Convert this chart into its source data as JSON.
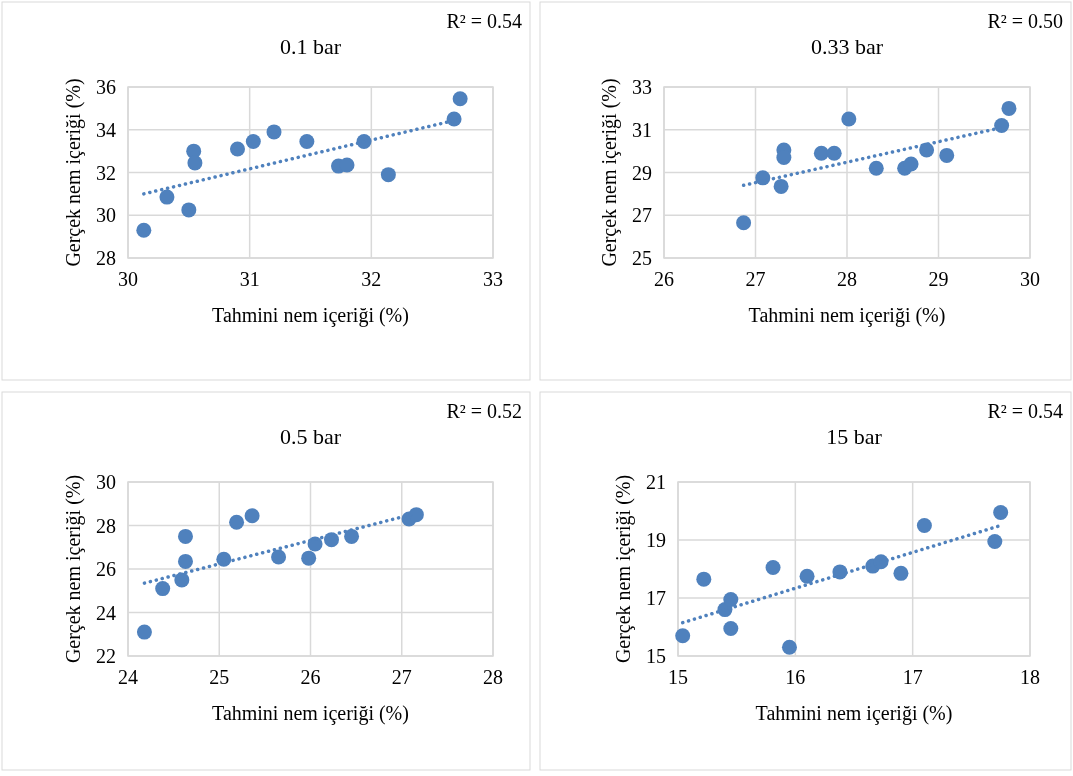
{
  "chart_data": [
    {
      "type": "scatter",
      "title": "0.1 bar",
      "xlabel": "Tahmini nem içeriği (%)",
      "ylabel": "Gerçek nem içeriği (%)",
      "annotations": [
        "R² = 0.54"
      ],
      "xlim": [
        30,
        33
      ],
      "xticks": [
        30,
        31,
        32,
        33
      ],
      "ylim": [
        28,
        36
      ],
      "yticks": [
        28,
        30,
        32,
        34,
        36
      ],
      "grid": true,
      "marker": "circle",
      "series": [
        {
          "color": "#4f81bd",
          "x": [
            30.13,
            30.32,
            30.5,
            30.54,
            30.55,
            30.9,
            31.03,
            31.2,
            31.47,
            31.73,
            31.8,
            31.94,
            32.14,
            32.68,
            32.73
          ],
          "values": [
            29.3,
            30.85,
            30.25,
            33.0,
            32.45,
            33.1,
            33.45,
            33.9,
            33.45,
            32.3,
            32.35,
            33.45,
            31.9,
            34.5,
            35.45
          ]
        },
        {
          "type": "line",
          "marker": "none",
          "line_style": "dotted",
          "color": "#4f81bd",
          "x": [
            30.13,
            32.73
          ],
          "values": [
            31.0,
            34.5
          ]
        }
      ]
    },
    {
      "type": "scatter",
      "title": "0.33 bar",
      "xlabel": "Tahmini nem içeriği (%)",
      "ylabel": "Gerçek nem içeriği (%)",
      "annotations": [
        "R² = 0.50"
      ],
      "xlim": [
        26,
        30
      ],
      "xticks": [
        26,
        27,
        28,
        29,
        30
      ],
      "ylim": [
        25,
        33
      ],
      "yticks": [
        25,
        27,
        29,
        31,
        33
      ],
      "grid": true,
      "marker": "circle",
      "series": [
        {
          "color": "#4f81bd",
          "x": [
            26.87,
            27.08,
            27.28,
            27.31,
            27.31,
            27.72,
            27.86,
            28.02,
            28.32,
            28.63,
            28.7,
            28.87,
            29.09,
            29.69,
            29.77
          ],
          "values": [
            26.65,
            28.75,
            28.35,
            30.05,
            29.7,
            29.9,
            29.9,
            31.5,
            29.2,
            29.2,
            29.4,
            30.05,
            29.8,
            31.2,
            32.0
          ]
        },
        {
          "type": "line",
          "marker": "none",
          "line_style": "dotted",
          "color": "#4f81bd",
          "x": [
            26.87,
            29.69
          ],
          "values": [
            28.4,
            31.1
          ]
        }
      ]
    },
    {
      "type": "scatter",
      "title": "0.5 bar",
      "xlabel": "Tahmini nem içeriği (%)",
      "ylabel": "Gerçek nem içeriği (%)",
      "annotations": [
        "R² = 0.52"
      ],
      "xlim": [
        24,
        28
      ],
      "xticks": [
        24,
        25,
        26,
        27,
        28
      ],
      "ylim": [
        22,
        30
      ],
      "yticks": [
        22,
        24,
        26,
        28,
        30
      ],
      "grid": true,
      "marker": "circle",
      "series": [
        {
          "color": "#4f81bd",
          "x": [
            24.18,
            24.38,
            24.59,
            24.63,
            24.63,
            25.05,
            25.19,
            25.36,
            25.65,
            25.98,
            26.05,
            26.23,
            26.45,
            27.08,
            27.16
          ],
          "values": [
            23.1,
            25.1,
            25.5,
            27.5,
            26.35,
            26.45,
            28.15,
            28.45,
            26.55,
            26.5,
            27.15,
            27.35,
            27.5,
            28.3,
            28.5
          ]
        },
        {
          "type": "line",
          "marker": "none",
          "line_style": "dotted",
          "color": "#4f81bd",
          "x": [
            24.18,
            27.15
          ],
          "values": [
            25.35,
            28.55
          ]
        }
      ]
    },
    {
      "type": "scatter",
      "title": "15 bar",
      "xlabel": "Tahmini nem içeriği (%)",
      "ylabel": "Gerçek nem içeriği (%)",
      "annotations": [
        "R² = 0.54"
      ],
      "xlim": [
        15,
        18
      ],
      "xticks": [
        15,
        16,
        17,
        18
      ],
      "ylim": [
        15,
        21
      ],
      "yticks": [
        15,
        17,
        19,
        21
      ],
      "grid": true,
      "marker": "circle",
      "series": [
        {
          "color": "#4f81bd",
          "x": [
            15.04,
            15.22,
            15.4,
            15.45,
            15.45,
            15.81,
            15.95,
            16.1,
            16.38,
            16.66,
            16.73,
            16.9,
            17.1,
            17.7,
            17.75
          ],
          "values": [
            15.7,
            17.65,
            16.6,
            16.95,
            15.95,
            18.05,
            15.3,
            17.75,
            17.9,
            18.1,
            18.25,
            17.85,
            19.5,
            18.95,
            19.95
          ]
        },
        {
          "type": "line",
          "marker": "none",
          "line_style": "dotted",
          "color": "#4f81bd",
          "x": [
            15.04,
            17.75
          ],
          "values": [
            16.15,
            19.5
          ]
        }
      ]
    }
  ]
}
